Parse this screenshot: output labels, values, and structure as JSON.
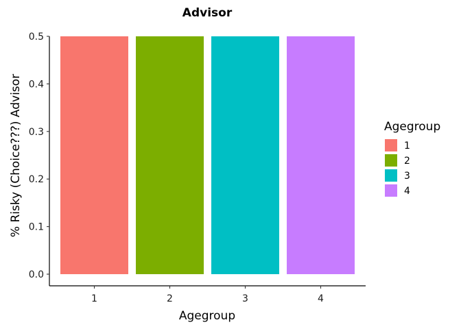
{
  "chart_data": {
    "type": "bar",
    "title": "Advisor",
    "xlabel": "Agegroup",
    "ylabel": "% Risky (Choice???) Advisor",
    "categories": [
      "1",
      "2",
      "3",
      "4"
    ],
    "values": [
      0.5,
      0.5,
      0.5,
      0.5
    ],
    "ylim": [
      0,
      0.5
    ],
    "yticks": [
      "0.0",
      "0.1",
      "0.2",
      "0.3",
      "0.4",
      "0.5"
    ],
    "colors": [
      "#F8766D",
      "#7CAE00",
      "#00BFC4",
      "#C77CFF"
    ],
    "grid": false,
    "legend": {
      "title": "Agegroup",
      "placement": "right",
      "entries": [
        "1",
        "2",
        "3",
        "4"
      ]
    }
  }
}
